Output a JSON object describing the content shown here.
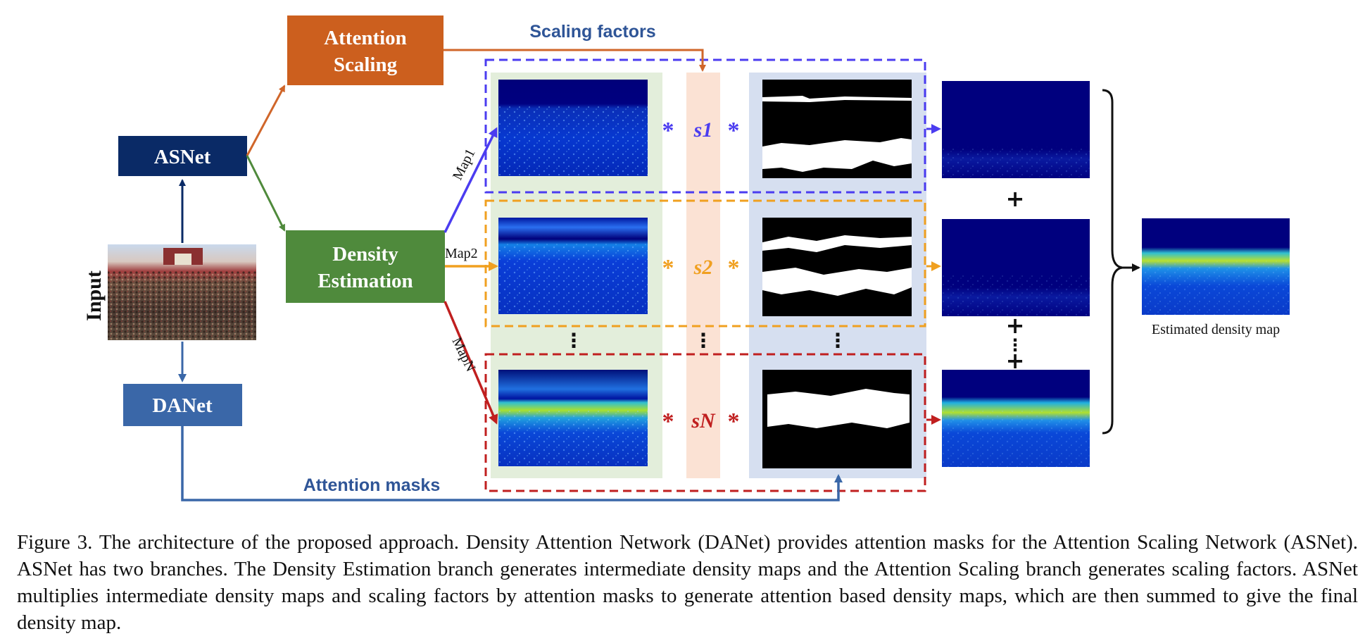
{
  "nodes": {
    "attention_scaling": {
      "line1": "Attention",
      "line2": "Scaling"
    },
    "asnet": "ASNet",
    "density_estimation": {
      "line1": "Density",
      "line2": "Estimation"
    },
    "danet": "DANet",
    "input": "Input"
  },
  "labels": {
    "scaling_factors": "Scaling factors",
    "attention_masks": "Attention masks",
    "map1": "Map1",
    "map2": "Map2",
    "mapN": "MapN",
    "estimated_density_map": "Estimated density map"
  },
  "scaling": {
    "s1": "s1",
    "s2": "s2",
    "sN": "sN"
  },
  "symbols": {
    "multiply": "*",
    "plus": "+",
    "dots": "⋮"
  },
  "colors": {
    "orange_node": "#cc5f1e",
    "navy_node": "#0a2a66",
    "green_node": "#4f8a3c",
    "steel_node": "#3a67a8",
    "blue_branch": "#4b3cf0",
    "orange_branch": "#f0a020",
    "red_branch": "#c01f1f",
    "label_blue": "#2f5597"
  },
  "caption": "Figure 3. The architecture of the proposed approach. Density Attention Network (DANet) provides attention masks for the Attention Scaling Network (ASNet). ASNet has two branches. The Density Estimation branch generates intermediate density maps and the Attention Scaling branch generates scaling factors. ASNet multiplies intermediate density maps and scaling factors by attention masks to generate attention based density maps, which are then summed to give the final density map."
}
